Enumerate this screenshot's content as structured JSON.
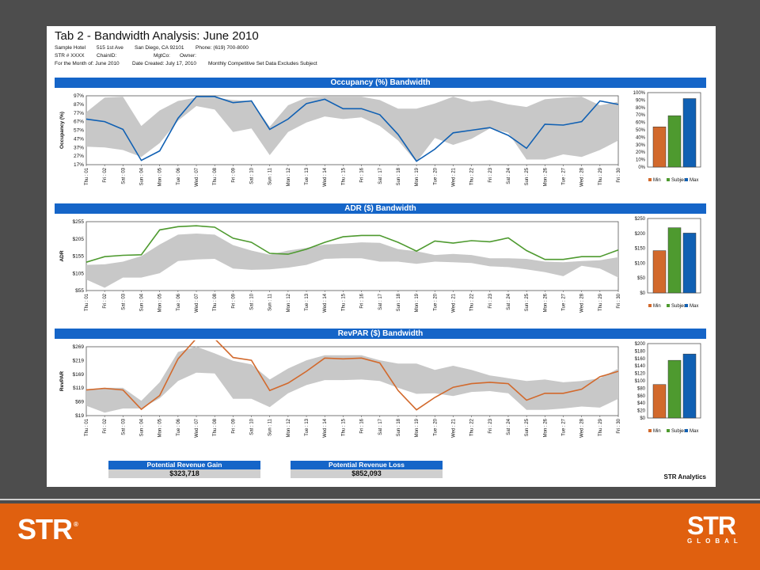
{
  "report": {
    "title": "Tab 2 - Bandwidth Analysis: June 2010",
    "meta": {
      "hotel": "Sample Hotel",
      "address": "515 1st Ave",
      "city": "San Diego, CA 92101",
      "phone": "Phone: (619) 700-8000",
      "str": "STR # XXXX",
      "chain": "ChainID:",
      "mgtco": "MgtCo:",
      "owner": "Owner:",
      "month": "For the Month of: June 2010",
      "created": "Date Created: July 17, 2010",
      "note": "Monthly Competitive Set Data Excludes Subject"
    },
    "brand": "STR Analytics"
  },
  "colors": {
    "band": "#1565c8",
    "min": "#d2692c",
    "subject": "#4e9a2f",
    "max": "#1060b3",
    "range": "#c8c8c8",
    "footer": "#e0600f"
  },
  "legend": [
    "Min",
    "Subject",
    "Max"
  ],
  "days": [
    "Thu : 01",
    "Fri : 02",
    "Sat : 03",
    "Sun : 04",
    "Mon : 05",
    "Tue : 06",
    "Wed : 07",
    "Thu : 08",
    "Fri : 09",
    "Sat : 10",
    "Sun : 11",
    "Mon : 12",
    "Tue : 13",
    "Wed : 14",
    "Thu : 15",
    "Fri : 16",
    "Sat : 17",
    "Sun : 18",
    "Mon : 19",
    "Tue : 20",
    "Wed : 21",
    "Thu : 22",
    "Fri : 23",
    "Sat : 24",
    "Sun : 25",
    "Mon : 26",
    "Tue : 27",
    "Wed : 28",
    "Thu : 29",
    "Fri : 30"
  ],
  "chart_data": [
    {
      "type": "area",
      "title": "Occupancy (%) Bandwidth",
      "ylabel": "Occupancy (%)",
      "ylim": [
        17,
        97
      ],
      "yticks": [
        "97%",
        "87%",
        "77%",
        "67%",
        "57%",
        "47%",
        "37%",
        "27%",
        "17%"
      ],
      "series": [
        {
          "name": "Min",
          "values": [
            38,
            37,
            34,
            26,
            42,
            68,
            85,
            81,
            55,
            59,
            28,
            55,
            66,
            73,
            70,
            72,
            62,
            45,
            20,
            48,
            40,
            47,
            59,
            54,
            23,
            23,
            29,
            26,
            34,
            45
          ]
        },
        {
          "name": "Max",
          "values": [
            78,
            95,
            96,
            62,
            80,
            91,
            95,
            95,
            92,
            91,
            61,
            86,
            95,
            96,
            96,
            96,
            92,
            82,
            82,
            88,
            96,
            90,
            92,
            87,
            84,
            93,
            95,
            96,
            86,
            90
          ]
        },
        {
          "name": "Subject",
          "values": [
            70,
            67,
            58,
            22,
            33,
            71,
            96,
            96,
            89,
            91,
            58,
            70,
            88,
            93,
            82,
            82,
            75,
            52,
            21,
            35,
            54,
            57,
            60,
            51,
            36,
            64,
            63,
            67,
            91,
            87
          ]
        }
      ],
      "bar": {
        "categories": [
          "Min",
          "Subject",
          "Max"
        ],
        "values": [
          54,
          69,
          92
        ],
        "ylim": [
          0,
          100
        ],
        "yticks": [
          "100%",
          "90%",
          "80%",
          "70%",
          "60%",
          "50%",
          "40%",
          "30%",
          "20%",
          "10%",
          "0%"
        ]
      }
    },
    {
      "type": "area",
      "title": "ADR ($) Bandwidth",
      "ylabel": "ADR",
      "ylim": [
        55,
        305
      ],
      "yticks": [
        "$255",
        "$205",
        "$155",
        "$105",
        "$55"
      ],
      "series": [
        {
          "name": "Min",
          "values": [
            95,
            65,
            102,
            102,
            118,
            162,
            168,
            170,
            135,
            130,
            132,
            138,
            148,
            170,
            172,
            172,
            160,
            160,
            152,
            160,
            158,
            155,
            143,
            140,
            132,
            122,
            107,
            145,
            135,
            102
          ]
        },
        {
          "name": "Max",
          "values": [
            148,
            150,
            160,
            180,
            222,
            258,
            262,
            258,
            220,
            200,
            185,
            200,
            210,
            222,
            225,
            230,
            228,
            205,
            198,
            184,
            188,
            184,
            172,
            172,
            170,
            160,
            158,
            162,
            165,
            176
          ]
        },
        {
          "name": "Subject",
          "values": [
            158,
            178,
            183,
            185,
            275,
            287,
            290,
            285,
            245,
            230,
            190,
            187,
            205,
            230,
            250,
            255,
            255,
            230,
            198,
            235,
            227,
            236,
            232,
            246,
            200,
            168,
            168,
            178,
            178,
            202
          ]
        }
      ],
      "bar": {
        "categories": [
          "Min",
          "Subject",
          "Max"
        ],
        "values": [
          142,
          219,
          201
        ],
        "ylim": [
          0,
          250
        ],
        "yticks": [
          "$250",
          "$200",
          "$150",
          "$100",
          "$50",
          "$0"
        ]
      }
    },
    {
      "type": "area",
      "title": "RevPAR ($) Bandwidth",
      "ylabel": "RevPAR",
      "ylim": [
        19,
        269
      ],
      "yticks": [
        "$269",
        "$219",
        "$169",
        "$119",
        "$69",
        "$19"
      ],
      "series": [
        {
          "name": "Min",
          "values": [
            55,
            30,
            45,
            45,
            82,
            145,
            175,
            172,
            80,
            80,
            50,
            100,
            130,
            148,
            148,
            150,
            145,
            120,
            98,
            100,
            90,
            105,
            108,
            100,
            40,
            40,
            45,
            52,
            48,
            80
          ]
        },
        {
          "name": "Max",
          "values": [
            115,
            120,
            120,
            73,
            140,
            250,
            270,
            245,
            218,
            205,
            150,
            190,
            220,
            238,
            238,
            238,
            220,
            208,
            208,
            185,
            200,
            185,
            165,
            155,
            145,
            150,
            140,
            145,
            155,
            190
          ]
        },
        {
          "name": "Subject",
          "values": [
            112,
            118,
            112,
            42,
            92,
            225,
            302,
            298,
            230,
            220,
            110,
            137,
            180,
            228,
            225,
            228,
            210,
            110,
            40,
            85,
            122,
            135,
            140,
            135,
            75,
            100,
            100,
            115,
            160,
            180
          ]
        }
      ],
      "bar": {
        "categories": [
          "Min",
          "Subject",
          "Max"
        ],
        "values": [
          90,
          155,
          172
        ],
        "ylim": [
          0,
          200
        ],
        "yticks": [
          "$200",
          "$180",
          "$160",
          "$140",
          "$120",
          "$100",
          "$80",
          "$60",
          "$40",
          "$20",
          "$0"
        ]
      }
    }
  ],
  "potential": {
    "gain": {
      "label": "Potential Revenue Gain",
      "value": "$323,718"
    },
    "loss": {
      "label": "Potential Revenue Loss",
      "value": "$852,093"
    }
  },
  "footer": {
    "logo_left": "STR",
    "logo_right": "STR",
    "logo_right_sub": "GLOBAL"
  }
}
